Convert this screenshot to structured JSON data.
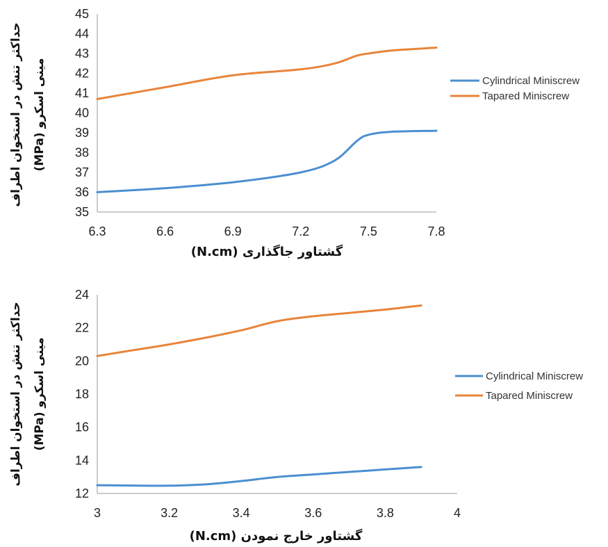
{
  "colors": {
    "cylindrical": "#4a8fd0",
    "tapered": "#e8843a",
    "axis": "#9a9a9a"
  },
  "chart_data": [
    {
      "type": "line",
      "xlabel": "گشتاور جاگذاری (N.cm)",
      "ylabel_lines": [
        "حداکثر تنش در استخوان اطراف",
        "مینی اسکرو (MPa)"
      ],
      "xlim": [
        6.3,
        7.8
      ],
      "ylim": [
        35,
        45
      ],
      "x_ticks": [
        "6.3",
        "6.6",
        "6.9",
        "7.2",
        "7.5",
        "7.8"
      ],
      "y_ticks": [
        "35",
        "36",
        "37",
        "38",
        "39",
        "40",
        "41",
        "42",
        "43",
        "44",
        "45"
      ],
      "legend_position": "right",
      "series": [
        {
          "name": "Cylindrical Miniscrew",
          "x": [
            6.3,
            6.6,
            6.9,
            7.2,
            7.35,
            7.45,
            7.5,
            7.6,
            7.8
          ],
          "values": [
            36.0,
            36.2,
            36.5,
            37.0,
            37.6,
            38.6,
            38.9,
            39.05,
            39.1
          ]
        },
        {
          "name": "Tapared Miniscrew",
          "x": [
            6.3,
            6.6,
            6.9,
            7.2,
            7.35,
            7.45,
            7.5,
            7.6,
            7.8
          ],
          "values": [
            40.7,
            41.3,
            41.9,
            42.2,
            42.5,
            42.9,
            43.0,
            43.15,
            43.3
          ]
        }
      ]
    },
    {
      "type": "line",
      "xlabel": "گشتاور خارج نمودن (N.cm)",
      "ylabel_lines": [
        "حداکثر تنش در استخوان اطراف",
        "مینی اسکرو (MPa)"
      ],
      "xlim": [
        3,
        4
      ],
      "ylim": [
        12,
        24
      ],
      "x_ticks": [
        "3",
        "3.2",
        "3.4",
        "3.6",
        "3.8",
        "4"
      ],
      "y_ticks": [
        "12",
        "14",
        "16",
        "18",
        "20",
        "22",
        "24"
      ],
      "legend_position": "right",
      "series": [
        {
          "name": "Cylindrical Miniscrew",
          "x": [
            3.0,
            3.1,
            3.2,
            3.3,
            3.4,
            3.5,
            3.6,
            3.7,
            3.8,
            3.9
          ],
          "values": [
            12.5,
            12.48,
            12.47,
            12.55,
            12.75,
            13.0,
            13.15,
            13.3,
            13.45,
            13.6
          ]
        },
        {
          "name": "Tapared Miniscrew",
          "x": [
            3.0,
            3.1,
            3.2,
            3.3,
            3.4,
            3.5,
            3.6,
            3.7,
            3.8,
            3.9
          ],
          "values": [
            20.3,
            20.65,
            21.0,
            21.4,
            21.85,
            22.4,
            22.7,
            22.9,
            23.1,
            23.35
          ]
        }
      ]
    }
  ]
}
